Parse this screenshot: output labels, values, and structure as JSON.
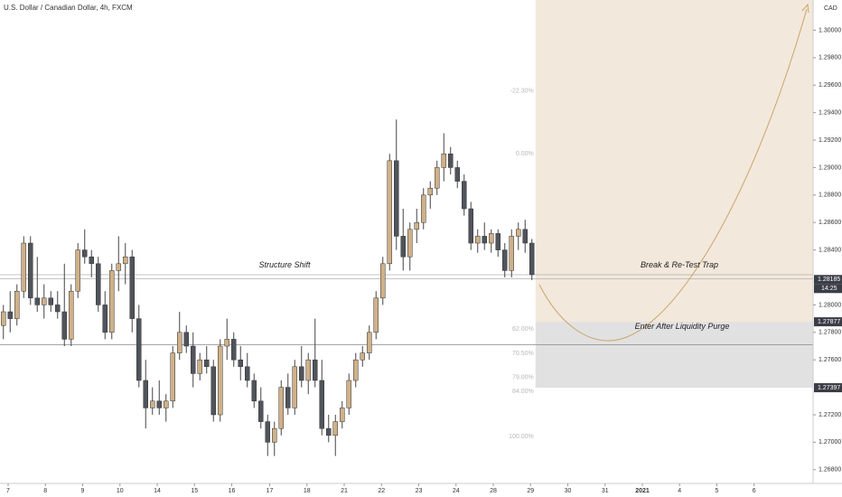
{
  "chart_data": {
    "type": "candlestick",
    "title": "U.S. Dollar / Canadian Dollar, 4h, FXCM",
    "currency": "CAD",
    "up_color": "#cfb089",
    "down_color": "#50545c",
    "ohlc": [
      [
        1.2785,
        1.28,
        1.2775,
        1.2795
      ],
      [
        1.2795,
        1.281,
        1.278,
        1.279
      ],
      [
        1.279,
        1.2815,
        1.2785,
        1.281
      ],
      [
        1.281,
        1.285,
        1.2805,
        1.2845
      ],
      [
        1.2845,
        1.285,
        1.28,
        1.2805
      ],
      [
        1.2805,
        1.2835,
        1.2795,
        1.28
      ],
      [
        1.28,
        1.2815,
        1.279,
        1.2805
      ],
      [
        1.2805,
        1.281,
        1.2795,
        1.28
      ],
      [
        1.28,
        1.281,
        1.279,
        1.2795
      ],
      [
        1.2795,
        1.283,
        1.277,
        1.2775
      ],
      [
        1.2775,
        1.2815,
        1.277,
        1.281
      ],
      [
        1.281,
        1.2845,
        1.2805,
        1.284
      ],
      [
        1.284,
        1.2855,
        1.283,
        1.2835
      ],
      [
        1.2835,
        1.284,
        1.282,
        1.283
      ],
      [
        1.283,
        1.2835,
        1.2795,
        1.28
      ],
      [
        1.28,
        1.281,
        1.2775,
        1.278
      ],
      [
        1.278,
        1.283,
        1.2775,
        1.2825
      ],
      [
        1.2825,
        1.285,
        1.281,
        1.283
      ],
      [
        1.283,
        1.2845,
        1.2815,
        1.2835
      ],
      [
        1.2835,
        1.284,
        1.278,
        1.279
      ],
      [
        1.279,
        1.28,
        1.274,
        1.2745
      ],
      [
        1.2745,
        1.276,
        1.271,
        1.2725
      ],
      [
        1.2725,
        1.274,
        1.272,
        1.273
      ],
      [
        1.273,
        1.2745,
        1.272,
        1.2725
      ],
      [
        1.2725,
        1.2735,
        1.2715,
        1.273
      ],
      [
        1.273,
        1.277,
        1.2725,
        1.2765
      ],
      [
        1.2765,
        1.2795,
        1.276,
        1.278
      ],
      [
        1.278,
        1.2785,
        1.2765,
        1.277
      ],
      [
        1.277,
        1.278,
        1.274,
        1.275
      ],
      [
        1.275,
        1.2765,
        1.2745,
        1.276
      ],
      [
        1.276,
        1.277,
        1.275,
        1.2755
      ],
      [
        1.2755,
        1.276,
        1.2715,
        1.272
      ],
      [
        1.272,
        1.2775,
        1.2715,
        1.277
      ],
      [
        1.277,
        1.279,
        1.276,
        1.2775
      ],
      [
        1.2775,
        1.278,
        1.2755,
        1.276
      ],
      [
        1.276,
        1.277,
        1.2745,
        1.2755
      ],
      [
        1.2755,
        1.2765,
        1.274,
        1.2745
      ],
      [
        1.2745,
        1.275,
        1.2725,
        1.273
      ],
      [
        1.273,
        1.274,
        1.271,
        1.2715
      ],
      [
        1.2715,
        1.272,
        1.269,
        1.27
      ],
      [
        1.27,
        1.2715,
        1.269,
        1.271
      ],
      [
        1.271,
        1.2745,
        1.2705,
        1.274
      ],
      [
        1.274,
        1.275,
        1.272,
        1.2725
      ],
      [
        1.2725,
        1.276,
        1.272,
        1.2755
      ],
      [
        1.2755,
        1.277,
        1.274,
        1.2745
      ],
      [
        1.2745,
        1.2765,
        1.2735,
        1.276
      ],
      [
        1.276,
        1.279,
        1.274,
        1.2745
      ],
      [
        1.2745,
        1.276,
        1.2705,
        1.271
      ],
      [
        1.271,
        1.272,
        1.27,
        1.2705
      ],
      [
        1.2705,
        1.272,
        1.269,
        1.2715
      ],
      [
        1.2715,
        1.273,
        1.271,
        1.2725
      ],
      [
        1.2725,
        1.275,
        1.272,
        1.2745
      ],
      [
        1.2745,
        1.2765,
        1.274,
        1.276
      ],
      [
        1.276,
        1.277,
        1.2755,
        1.2765
      ],
      [
        1.2765,
        1.2785,
        1.276,
        1.278
      ],
      [
        1.278,
        1.281,
        1.2775,
        1.2805
      ],
      [
        1.2805,
        1.2835,
        1.28,
        1.283
      ],
      [
        1.283,
        1.291,
        1.2825,
        1.2905
      ],
      [
        1.2905,
        1.2935,
        1.284,
        1.285
      ],
      [
        1.285,
        1.287,
        1.2825,
        1.2835
      ],
      [
        1.2835,
        1.286,
        1.2825,
        1.2855
      ],
      [
        1.2855,
        1.287,
        1.2845,
        1.286
      ],
      [
        1.286,
        1.2885,
        1.2855,
        1.288
      ],
      [
        1.288,
        1.289,
        1.287,
        1.2885
      ],
      [
        1.2885,
        1.2905,
        1.288,
        1.29
      ],
      [
        1.29,
        1.2925,
        1.289,
        1.291
      ],
      [
        1.291,
        1.2915,
        1.2895,
        1.29
      ],
      [
        1.29,
        1.2905,
        1.2885,
        1.289
      ],
      [
        1.289,
        1.2895,
        1.2865,
        1.287
      ],
      [
        1.287,
        1.2875,
        1.284,
        1.2845
      ],
      [
        1.2845,
        1.2855,
        1.2838,
        1.285
      ],
      [
        1.285,
        1.286,
        1.284,
        1.2845
      ],
      [
        1.2845,
        1.2855,
        1.2838,
        1.2852
      ],
      [
        1.2852,
        1.2855,
        1.2835,
        1.284
      ],
      [
        1.284,
        1.2845,
        1.282,
        1.2825
      ],
      [
        1.2825,
        1.2855,
        1.282,
        1.285
      ],
      [
        1.285,
        1.286,
        1.284,
        1.2855
      ],
      [
        1.2855,
        1.2862,
        1.2838,
        1.2845
      ],
      [
        1.2845,
        1.2848,
        1.2818,
        1.2822
      ]
    ],
    "xlim": [
      -0.5,
      119.5
    ],
    "xticks": [
      {
        "value": 0.7,
        "label": "7"
      },
      {
        "value": 6.2,
        "label": "8"
      },
      {
        "value": 11.7,
        "label": "9"
      },
      {
        "value": 17.2,
        "label": "10"
      },
      {
        "value": 22.7,
        "label": "14"
      },
      {
        "value": 28.2,
        "label": "15"
      },
      {
        "value": 33.7,
        "label": "16"
      },
      {
        "value": 39.3,
        "label": "17"
      },
      {
        "value": 44.8,
        "label": "18"
      },
      {
        "value": 50.3,
        "label": "21"
      },
      {
        "value": 55.8,
        "label": "22"
      },
      {
        "value": 61.3,
        "label": "23"
      },
      {
        "value": 66.8,
        "label": "24"
      },
      {
        "value": 72.3,
        "label": "28"
      },
      {
        "value": 77.8,
        "label": "29"
      },
      {
        "value": 83.3,
        "label": "30"
      },
      {
        "value": 88.8,
        "label": "31"
      },
      {
        "value": 94.3,
        "label": "2021"
      },
      {
        "value": 99.8,
        "label": "4"
      },
      {
        "value": 105.3,
        "label": "5"
      },
      {
        "value": 110.8,
        "label": "6"
      }
    ],
    "ylim": [
      1.267,
      1.3022
    ],
    "yticks": [
      {
        "value": 1.268,
        "label": "1.26800"
      },
      {
        "value": 1.27,
        "label": "1.27000"
      },
      {
        "value": 1.272,
        "label": "1.27200"
      },
      {
        "value": 1.276,
        "label": "1.27600"
      },
      {
        "value": 1.278,
        "label": "1.27800"
      },
      {
        "value": 1.28,
        "label": "1.28000"
      },
      {
        "value": 1.284,
        "label": "1.28400"
      },
      {
        "value": 1.286,
        "label": "1.28600"
      },
      {
        "value": 1.288,
        "label": "1.28800"
      },
      {
        "value": 1.29,
        "label": "1.29000"
      },
      {
        "value": 1.292,
        "label": "1.29200"
      },
      {
        "value": 1.294,
        "label": "1.29400"
      },
      {
        "value": 1.296,
        "label": "1.29600"
      },
      {
        "value": 1.298,
        "label": "1.29800"
      },
      {
        "value": 1.3,
        "label": "1.30000"
      }
    ],
    "price_tags": [
      1.28185,
      1.27877,
      1.27397
    ],
    "timer": "14:25",
    "levels": [
      1.2822,
      1.2819,
      1.2771
    ],
    "fib_levels": [
      {
        "value": 1.29559,
        "label": "-22.30%"
      },
      {
        "value": 1.291,
        "label": "0.00%"
      },
      {
        "value": 1.27823,
        "label": "62.00%"
      },
      {
        "value": 1.27648,
        "label": "70.50%"
      },
      {
        "value": 1.27473,
        "label": "79.00%"
      },
      {
        "value": 1.2737,
        "label": "84.00%"
      },
      {
        "value": 1.2704,
        "label": "100.00%"
      }
    ],
    "annotations": [
      {
        "text": "Structure Shift",
        "value": 1.2825
      },
      {
        "text": "Break & Re-Test Trap",
        "value": 1.2825
      },
      {
        "text": "Enter After Liquidity Purge",
        "value": 1.278
      }
    ]
  }
}
